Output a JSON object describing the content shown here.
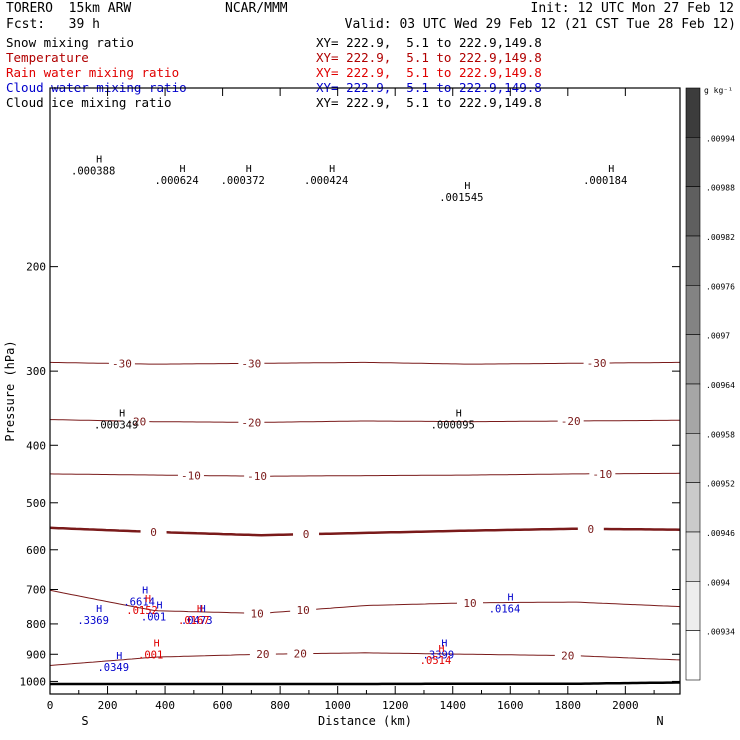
{
  "header": {
    "model": "TORERO  15km ARW",
    "org": "NCAR/MMM",
    "init": "Init: 12 UTC Mon 27 Feb 12",
    "fcst": "Fcst:   39 h",
    "valid": "Valid: 03 UTC Wed 29 Feb 12 (21 CST Tue 28 Feb 12)"
  },
  "fields": [
    {
      "name": "Snow mixing ratio",
      "xy": "XY= 222.9,  5.1 to 222.9,149.8",
      "color": "#000000"
    },
    {
      "name": "Temperature",
      "xy": "XY= 222.9,  5.1 to 222.9,149.8",
      "color": "#b00000"
    },
    {
      "name": "Rain water mixing ratio",
      "xy": "XY= 222.9,  5.1 to 222.9,149.8",
      "color": "#e00000"
    },
    {
      "name": "Cloud water mixing ratio",
      "xy": "XY= 222.9,  5.1 to 222.9,149.8",
      "color": "#0000cc"
    },
    {
      "name": "Cloud ice mixing ratio",
      "xy": "XY= 222.9,  5.1 to 222.9,149.8",
      "color": "#000000"
    }
  ],
  "colors": {
    "temperature": "#7a1a1a",
    "rain": "#e00000",
    "cloud_water": "#0000cc",
    "snow": "#000000"
  },
  "chart_data": {
    "type": "line",
    "xlabel": "Distance (km)",
    "ylabel": "Pressure (hPa)",
    "xlim": [
      0,
      2190
    ],
    "ylim": [
      1050,
      100
    ],
    "y_scale": "log",
    "x_ticks": [
      0,
      200,
      400,
      600,
      800,
      1000,
      1200,
      1400,
      1600,
      1800,
      2000
    ],
    "y_ticks": [
      200,
      300,
      400,
      500,
      600,
      700,
      800,
      900,
      1000
    ],
    "endpoints": {
      "left": "S",
      "right": "N"
    },
    "temperature_contours": [
      {
        "label": "-30",
        "p": [
          290,
          292,
          291,
          290,
          292,
          291,
          290
        ],
        "label_x": [
          250,
          700,
          1900
        ]
      },
      {
        "label": "-20",
        "p": [
          362,
          365,
          366,
          364,
          365,
          364,
          363
        ],
        "label_x": [
          300,
          700,
          1810
        ]
      },
      {
        "label": "-10",
        "p": [
          447,
          449,
          451,
          450,
          449,
          447,
          446
        ],
        "label_x": [
          490,
          720,
          1920
        ]
      },
      {
        "label": "0",
        "p": [
          551,
          560,
          567,
          562,
          557,
          553,
          555
        ],
        "label_x": [
          360,
          890,
          1880
        ]
      },
      {
        "label": "10",
        "p": [
          702,
          760,
          768,
          745,
          737,
          735,
          748
        ],
        "label_x": [
          720,
          880,
          1460
        ]
      },
      {
        "label": "20",
        "p": [
          940,
          910,
          900,
          895,
          900,
          905,
          920
        ],
        "label_x": [
          740,
          870,
          1800
        ]
      }
    ],
    "surface": {
      "label": "",
      "p": [
        1010,
        1010,
        1010,
        1010,
        1009,
        1009,
        1004
      ]
    },
    "extrema_labels": [
      {
        "text": ".000388",
        "x": 150,
        "p": 140,
        "color": "#000000"
      },
      {
        "text": ".000624",
        "x": 440,
        "p": 145,
        "color": "#000000"
      },
      {
        "text": ".000372",
        "x": 670,
        "p": 145,
        "color": "#000000"
      },
      {
        "text": ".000424",
        "x": 960,
        "p": 145,
        "color": "#000000"
      },
      {
        "text": ".001545",
        "x": 1430,
        "p": 155,
        "color": "#000000"
      },
      {
        "text": ".000184",
        "x": 1930,
        "p": 145,
        "color": "#000000"
      },
      {
        "text": ".000349",
        "x": 230,
        "p": 375,
        "color": "#000000"
      },
      {
        "text": ".000095",
        "x": 1400,
        "p": 375,
        "color": "#000000"
      },
      {
        "text": ".6614",
        "x": 310,
        "p": 745,
        "color": "#0000cc"
      },
      {
        "text": ".0152",
        "x": 320,
        "p": 770,
        "color": "#e00000"
      },
      {
        "text": ".001",
        "x": 360,
        "p": 790,
        "color": "#0000cc"
      },
      {
        "text": ".3369",
        "x": 150,
        "p": 800,
        "color": "#0000cc"
      },
      {
        "text": ".0473",
        "x": 510,
        "p": 800,
        "color": "#0000cc"
      },
      {
        "text": ".0167",
        "x": 500,
        "p": 800,
        "color": "#e00000"
      },
      {
        "text": ".001",
        "x": 350,
        "p": 915,
        "color": "#e00000"
      },
      {
        "text": ".0164",
        "x": 1580,
        "p": 765,
        "color": "#0000cc"
      },
      {
        "text": ".0349",
        "x": 220,
        "p": 960,
        "color": "#0000cc"
      },
      {
        "text": ".3399",
        "x": 1350,
        "p": 915,
        "color": "#0000cc"
      },
      {
        "text": ".0514",
        "x": 1340,
        "p": 935,
        "color": "#e00000"
      }
    ],
    "colorbar": {
      "unit": "g kg⁻¹",
      "ticks": [
        ".00994",
        ".00988",
        ".00982",
        ".00976",
        ".0097",
        ".00964",
        ".00958",
        ".00952",
        ".00946",
        ".0094",
        ".00934"
      ]
    }
  }
}
